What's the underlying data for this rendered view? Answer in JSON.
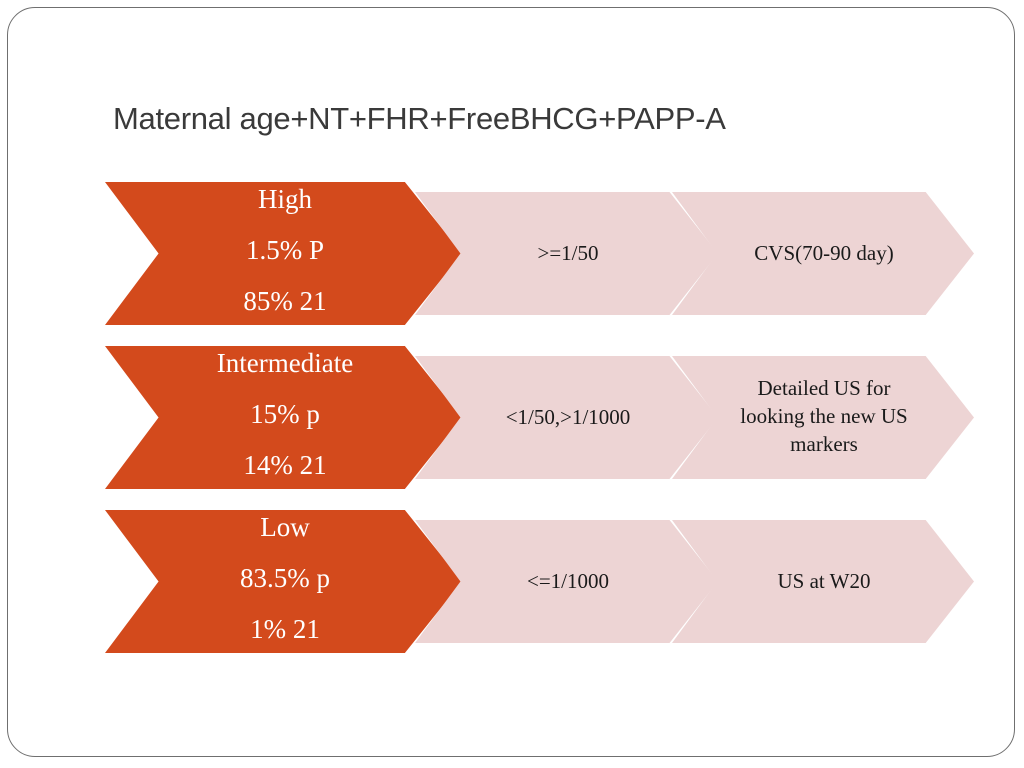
{
  "title": "Maternal age+NT+FHR+FreeBHCG+PAPP-A",
  "rows": [
    {
      "lead": [
        "High",
        "1.5% P",
        "85%  21"
      ],
      "threshold": ">=1/50",
      "action": "CVS(70-90 day)"
    },
    {
      "lead": [
        "Intermediate",
        "15% p",
        "14%   21"
      ],
      "threshold": "<1/50,>1/1000",
      "action": "Detailed US for looking the new US markers"
    },
    {
      "lead": [
        "Low",
        "83.5% p",
        "1%   21"
      ],
      "threshold": "<=1/1000",
      "action": "US at W20"
    }
  ],
  "colors": {
    "lead_fill": "#d34a1c",
    "cell_fill": "#edd4d4",
    "lead_text": "#ffffff",
    "title_text": "#3a3a3a"
  }
}
